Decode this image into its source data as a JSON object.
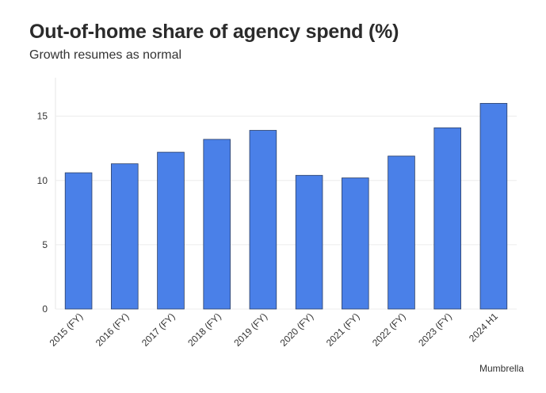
{
  "chart_data": {
    "type": "bar",
    "title": "Out-of-home share of agency spend (%)",
    "subtitle": "Growth resumes as normal",
    "source": "Mumbrella",
    "categories": [
      "2015 (FY)",
      "2016 (FY)",
      "2017 (FY)",
      "2018 (FY)",
      "2019 (FY)",
      "2020 (FY)",
      "2021 (FY)",
      "2022 (FY)",
      "2023 (FY)",
      "2024 H1"
    ],
    "values": [
      10.6,
      11.3,
      12.2,
      13.2,
      13.9,
      10.4,
      10.2,
      11.9,
      14.1,
      16.0
    ],
    "ylim": [
      0,
      18
    ],
    "yticks": [
      0,
      5,
      10,
      15
    ],
    "xlabel": "",
    "ylabel": "",
    "grid": true,
    "legend": "none",
    "bar_color": "#4a80e8",
    "bar_edge_color": "#2b3f66"
  }
}
